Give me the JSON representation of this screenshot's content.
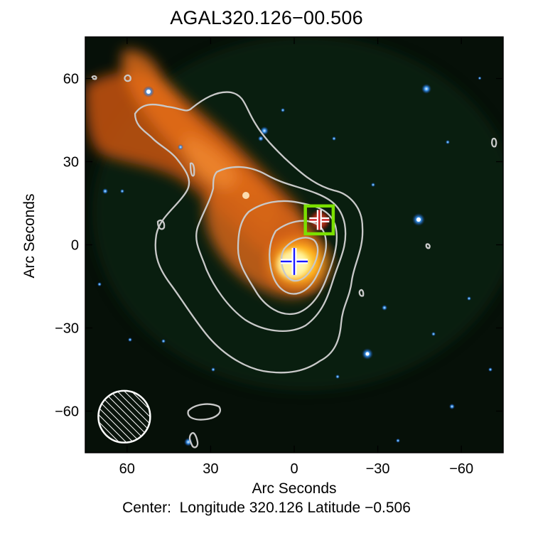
{
  "title": "AGAL320.126−00.506",
  "axes": {
    "xlabel": "Arc Seconds",
    "ylabel": "Arc Seconds",
    "x_ticks": [
      60,
      30,
      0,
      -30,
      -60
    ],
    "x_tick_labels": [
      "60",
      "30",
      "0",
      "−30",
      "−60"
    ],
    "y_ticks": [
      60,
      30,
      0,
      -30,
      -60
    ],
    "y_tick_labels": [
      "60",
      "30",
      "0",
      "−30",
      "−60"
    ],
    "xlim": [
      75,
      -75
    ],
    "ylim": [
      -75,
      75
    ]
  },
  "center": {
    "prefix": "Center:",
    "longitude_label": "Longitude",
    "longitude": "320.126",
    "latitude_label": "Latitude",
    "latitude": "−0.506"
  },
  "markers": {
    "blue_cross": {
      "x": 0,
      "y": -6,
      "color": "#1a1aff"
    },
    "red_cross": {
      "x": -9,
      "y": 9,
      "color": "#cc1a1a"
    },
    "green_box": {
      "x": -9,
      "y": 9,
      "half_size": 5,
      "color": "#7be000"
    }
  },
  "beam": {
    "x": 61,
    "y": -62,
    "radius_arcsec": 9.3
  },
  "colors": {
    "background": "#061008",
    "contour": "#c9c9c9",
    "nebula": "#e56a12",
    "core": "#ffd830",
    "stars": "#4aa0ff"
  }
}
